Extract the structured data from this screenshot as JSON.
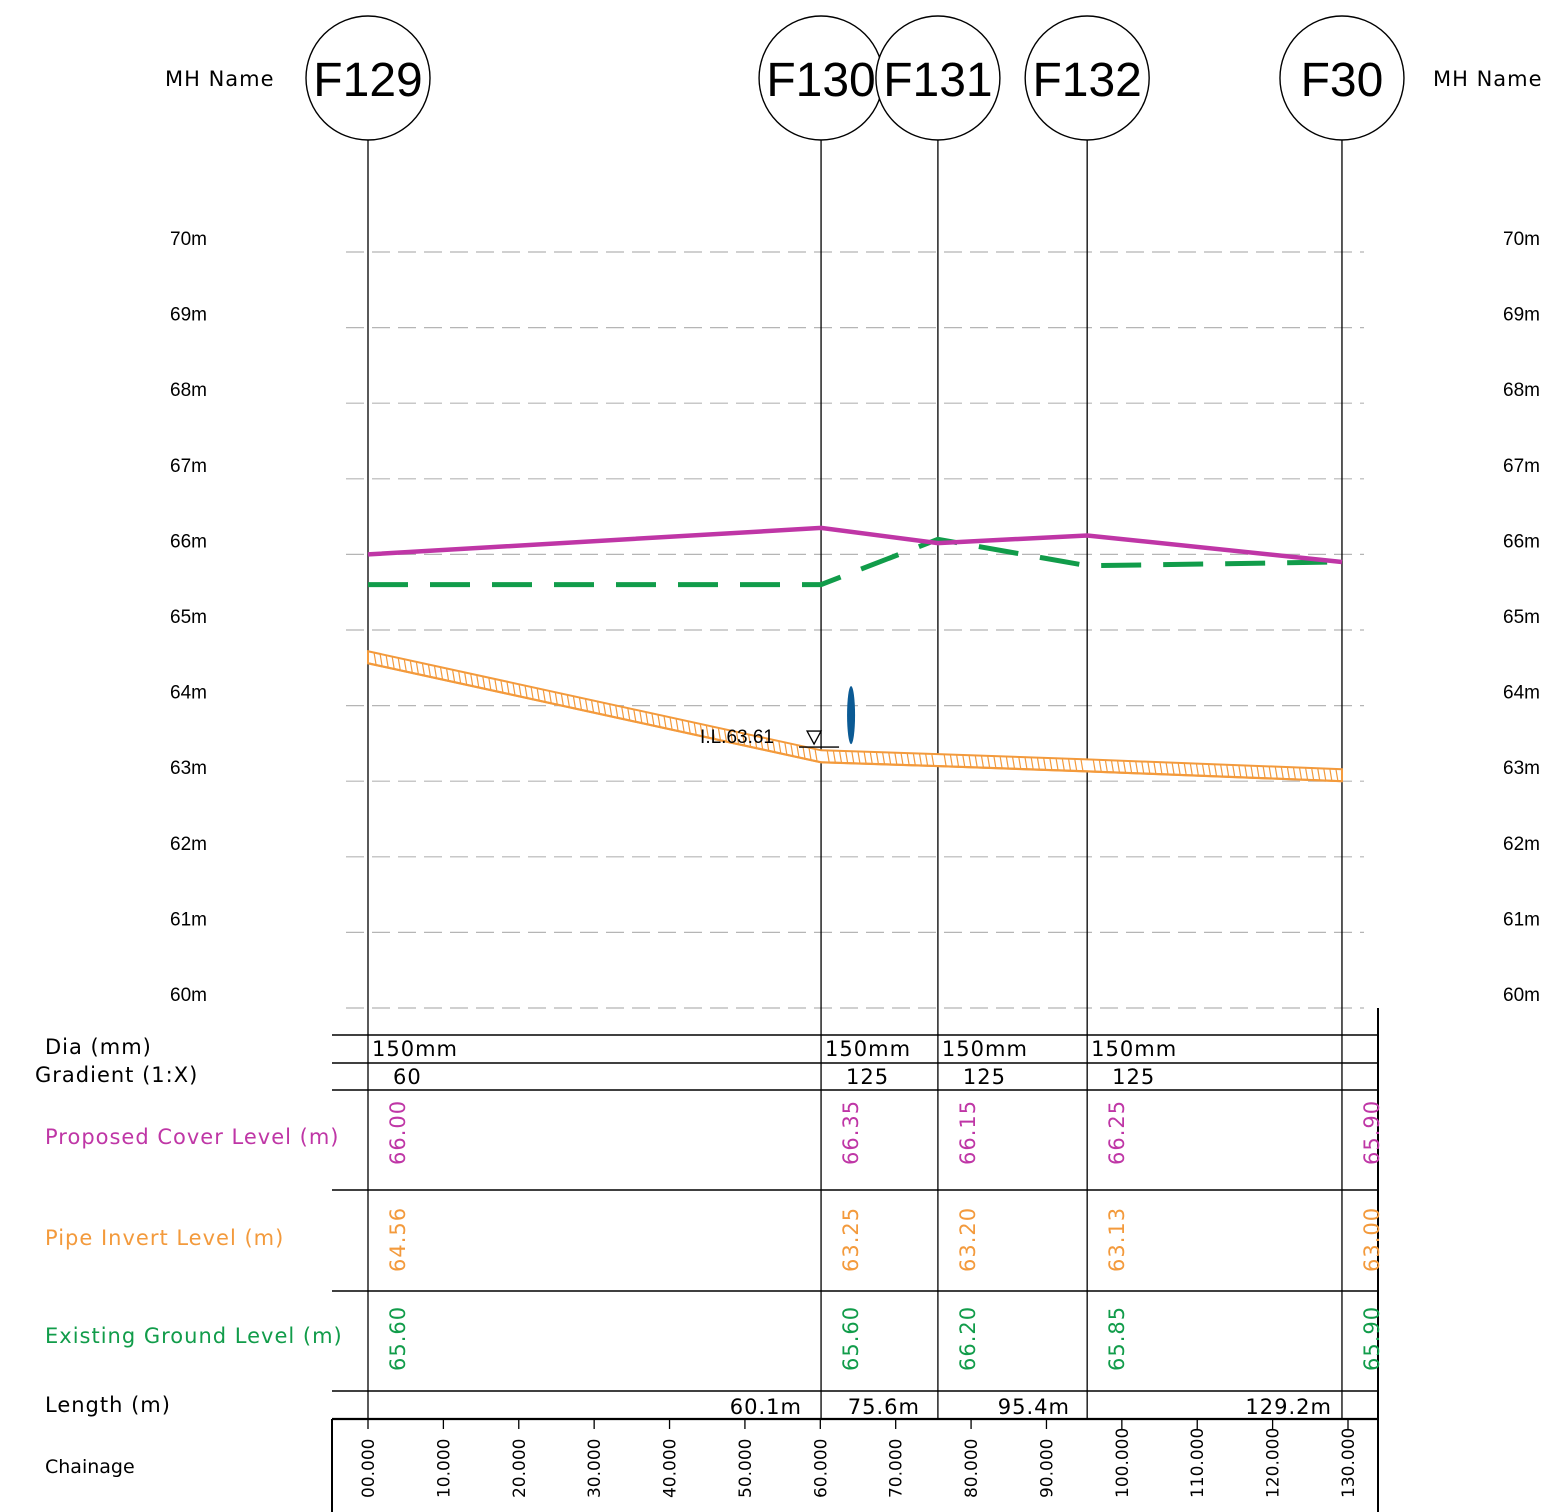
{
  "colors": {
    "proposed_cover": "#bf36a6",
    "pipe_invert": "#f39a3c",
    "existing_ground": "#119c4a",
    "water_marker": "#0b5a94",
    "grid": "#b5b5b5",
    "line": "#000000"
  },
  "header": {
    "mh_name_label": "MH  Name"
  },
  "manholes": [
    {
      "name": "F129",
      "chainage": 0
    },
    {
      "name": "F130",
      "chainage": 60.1
    },
    {
      "name": "F131",
      "chainage": 75.6
    },
    {
      "name": "F132",
      "chainage": 95.4
    },
    {
      "name": "F30",
      "chainage": 129.2
    }
  ],
  "level_axis": {
    "unit": "m",
    "ticks": [
      70,
      69,
      68,
      67,
      66,
      65,
      64,
      63,
      62,
      61,
      60
    ],
    "labels": [
      "70m",
      "69m",
      "68m",
      "67m",
      "66m",
      "65m",
      "64m",
      "63m",
      "62m",
      "61m",
      "60m"
    ]
  },
  "annotation": {
    "invert_label": "I.L.63.61",
    "level": 63.61,
    "chainage": 60.1
  },
  "table": {
    "rows": {
      "dia": "Dia  (mm)",
      "gradient": "Gradient  (1:X)",
      "cover": "Proposed  Cover  Level  (m)",
      "invert": "Pipe  Invert  Level  (m)",
      "ground": "Existing  Ground  Level  (m)",
      "length": "Length  (m)",
      "chainage": "Chainage"
    },
    "segments": [
      {
        "dia": "150mm",
        "gradient": "60"
      },
      {
        "dia": "150mm",
        "gradient": "125"
      },
      {
        "dia": "150mm",
        "gradient": "125"
      },
      {
        "dia": "150mm",
        "gradient": "125"
      }
    ],
    "cover_levels": [
      "66.00",
      "66.35",
      "66.15",
      "66.25",
      "65.90"
    ],
    "invert_levels": [
      "64.56",
      "63.25",
      "63.20",
      "63.13",
      "63.00"
    ],
    "ground_levels": [
      "65.60",
      "65.60",
      "66.20",
      "65.85",
      "65.90"
    ],
    "lengths": [
      "60.1m",
      "75.6m",
      "95.4m",
      "129.2m"
    ],
    "chainage_ticks": [
      "00.000",
      "10.000",
      "20.000",
      "30.000",
      "40.000",
      "50.000",
      "60.000",
      "70.000",
      "80.000",
      "90.000",
      "100.000",
      "110.000",
      "120.000",
      "130.000"
    ]
  },
  "chart_data": {
    "type": "line",
    "x": [
      0,
      60.1,
      75.6,
      95.4,
      129.2
    ],
    "series": [
      {
        "name": "Proposed  Cover  Level  (m)",
        "values": [
          66.0,
          66.35,
          66.15,
          66.25,
          65.9
        ]
      },
      {
        "name": "Pipe  Invert  Level  (m)",
        "values": [
          64.56,
          63.25,
          63.2,
          63.13,
          63.0
        ]
      },
      {
        "name": "Existing  Ground  Level  (m)",
        "values": [
          65.6,
          65.6,
          66.2,
          65.85,
          65.9
        ]
      }
    ],
    "xlabel": "Chainage",
    "ylabel": "",
    "xlim": [
      0,
      130
    ],
    "ylim": [
      60,
      70
    ],
    "grid": true
  }
}
